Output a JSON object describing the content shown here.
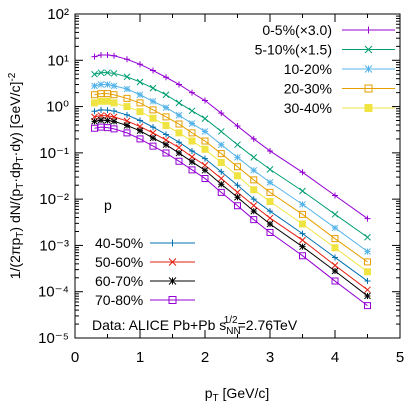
{
  "chart_data": {
    "type": "scatter",
    "y_label": [
      "1/(2πp",
      "T",
      ") dN/(p",
      "T",
      "·dp",
      "T",
      "·dy) [GeV/c]",
      "-2"
    ],
    "x_label": [
      "p",
      "T",
      " [GeV/c]"
    ],
    "annotation": [
      "Data: ALICE Pb+Pb s",
      "NN",
      "1/2",
      "=2.76TeV"
    ],
    "particle": "p",
    "log_y": true,
    "xlim": [
      0,
      5
    ],
    "xticks": [
      0,
      1,
      2,
      3,
      4,
      5
    ],
    "ylim": [
      1e-05,
      100
    ],
    "yticks": [
      {
        "value": 1e-05,
        "label": "10⁻⁵"
      },
      {
        "value": 0.0001,
        "label": "10⁻⁴"
      },
      {
        "value": 0.001,
        "label": "10⁻³"
      },
      {
        "value": 0.01,
        "label": "10⁻²"
      },
      {
        "value": 0.1,
        "label": "10⁻¹"
      },
      {
        "value": 1,
        "label": "10⁰"
      },
      {
        "value": 10,
        "label": "10¹"
      },
      {
        "value": 100,
        "label": "10²"
      }
    ],
    "x": [
      0.3,
      0.4,
      0.5,
      0.6,
      0.8,
      1.0,
      1.2,
      1.4,
      1.6,
      1.8,
      2.0,
      2.25,
      2.5,
      2.75,
      3.0,
      3.5,
      4.0,
      4.5
    ],
    "series": [
      {
        "name": "0-5%(×3.0)",
        "color": "#9400d3",
        "marker": "plus",
        "values": [
          12,
          13,
          13,
          12.5,
          10.5,
          8.2,
          6.0,
          4.3,
          3.0,
          2.0,
          1.35,
          0.72,
          0.38,
          0.2,
          0.11,
          0.038,
          0.012,
          0.0038
        ]
      },
      {
        "name": "5-10%(×1.5)",
        "color": "#009e73",
        "marker": "cross",
        "values": [
          5.0,
          5.4,
          5.4,
          5.2,
          4.4,
          3.4,
          2.5,
          1.8,
          1.2,
          0.81,
          0.55,
          0.29,
          0.15,
          0.08,
          0.044,
          0.015,
          0.0047,
          0.0015
        ]
      },
      {
        "name": "10-20%",
        "color": "#56b4e9",
        "marker": "star",
        "values": [
          2.8,
          3.0,
          3.0,
          2.8,
          2.4,
          1.8,
          1.3,
          0.95,
          0.65,
          0.43,
          0.29,
          0.15,
          0.08,
          0.042,
          0.023,
          0.0077,
          0.0024,
          0.00074
        ]
      },
      {
        "name": "20-30%",
        "color": "#e69f00",
        "marker": "square",
        "values": [
          1.8,
          1.9,
          1.9,
          1.8,
          1.5,
          1.2,
          0.85,
          0.6,
          0.42,
          0.27,
          0.18,
          0.096,
          0.05,
          0.026,
          0.014,
          0.0047,
          0.0014,
          0.00044
        ]
      },
      {
        "name": "30-40%",
        "color": "#f0e442",
        "marker": "filled-square",
        "values": [
          1.2,
          1.3,
          1.3,
          1.2,
          1.0,
          0.78,
          0.56,
          0.39,
          0.27,
          0.18,
          0.12,
          0.062,
          0.032,
          0.016,
          0.0089,
          0.0029,
          0.00089,
          0.00027
        ]
      },
      {
        "name": "40-50%",
        "color": "#0072b2",
        "marker": "plus",
        "values": [
          0.79,
          0.85,
          0.84,
          0.8,
          0.66,
          0.5,
          0.36,
          0.25,
          0.17,
          0.11,
          0.075,
          0.039,
          0.02,
          0.01,
          0.0055,
          0.0018,
          0.00055,
          0.00017
        ]
      },
      {
        "name": "50-60%",
        "color": "#e51e10",
        "marker": "cross",
        "values": [
          0.6,
          0.64,
          0.63,
          0.6,
          0.49,
          0.37,
          0.27,
          0.19,
          0.13,
          0.082,
          0.054,
          0.028,
          0.014,
          0.0073,
          0.0039,
          0.0013,
          0.00037,
          0.00011
        ]
      },
      {
        "name": "60-70%",
        "color": "#000000",
        "marker": "star",
        "values": [
          0.48,
          0.51,
          0.5,
          0.48,
          0.39,
          0.3,
          0.21,
          0.15,
          0.099,
          0.064,
          0.042,
          0.021,
          0.011,
          0.0055,
          0.0029,
          0.00094,
          0.00028,
          8.1e-05
        ]
      },
      {
        "name": "70-80%",
        "color": "#9400d3",
        "marker": "square",
        "values": [
          0.34,
          0.36,
          0.35,
          0.33,
          0.27,
          0.2,
          0.14,
          0.099,
          0.066,
          0.043,
          0.028,
          0.014,
          0.0072,
          0.0036,
          0.0019,
          0.0006,
          0.00017,
          5e-05
        ]
      }
    ]
  }
}
